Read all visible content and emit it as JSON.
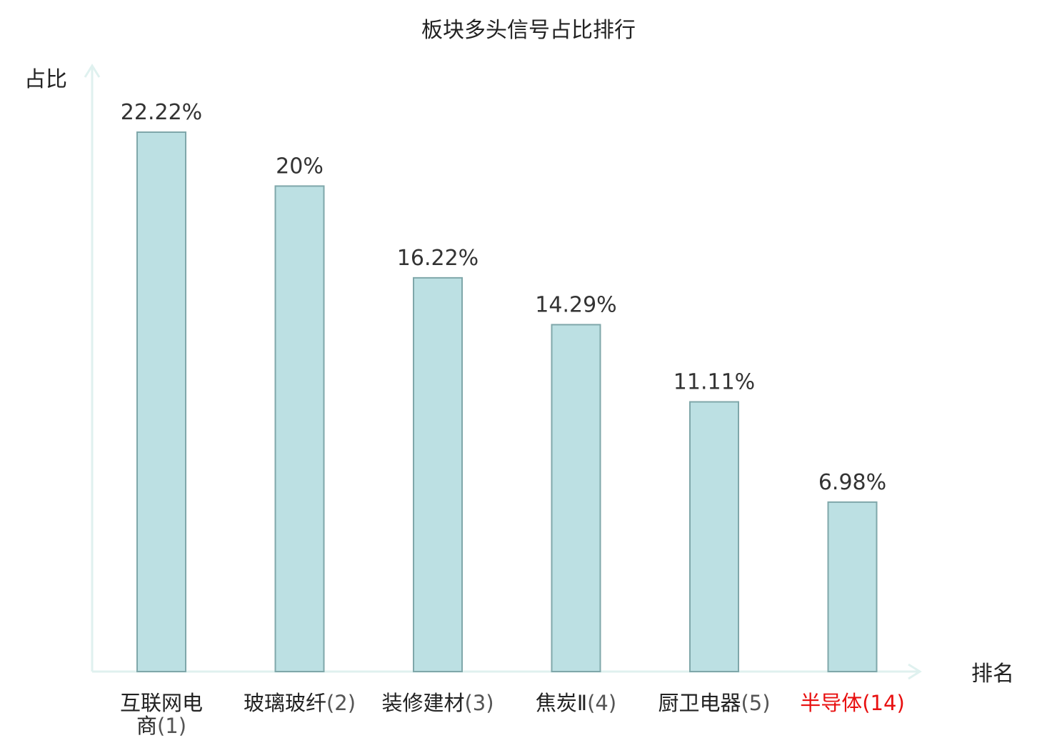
{
  "chart_data": {
    "type": "bar",
    "title": "板块多头信号占比排行",
    "ylabel": "占比",
    "xlabel": "排名",
    "unit": "%",
    "ylim": [
      0,
      25
    ],
    "grid": false,
    "bar_color": "#bce0e3",
    "bar_border_color": "#7fa7aa",
    "axis_color": "#dff1ef",
    "highlight_color": "#e81010",
    "categories": [
      {
        "name": "互联网电商",
        "rank": "(1)",
        "value": 22.22,
        "label": "22.22%",
        "highlight": false
      },
      {
        "name": "玻璃玻纤",
        "rank": "(2)",
        "value": 20,
        "label": "20%",
        "highlight": false
      },
      {
        "name": "装修建材",
        "rank": "(3)",
        "value": 16.22,
        "label": "16.22%",
        "highlight": false
      },
      {
        "name": "焦炭Ⅱ",
        "rank": "(4)",
        "value": 14.29,
        "label": "14.29%",
        "highlight": false
      },
      {
        "name": "厨卫电器",
        "rank": "(5)",
        "value": 11.11,
        "label": "11.11%",
        "highlight": false
      },
      {
        "name": "半导体",
        "rank": "(14)",
        "value": 6.98,
        "label": "6.98%",
        "highlight": true
      }
    ]
  }
}
